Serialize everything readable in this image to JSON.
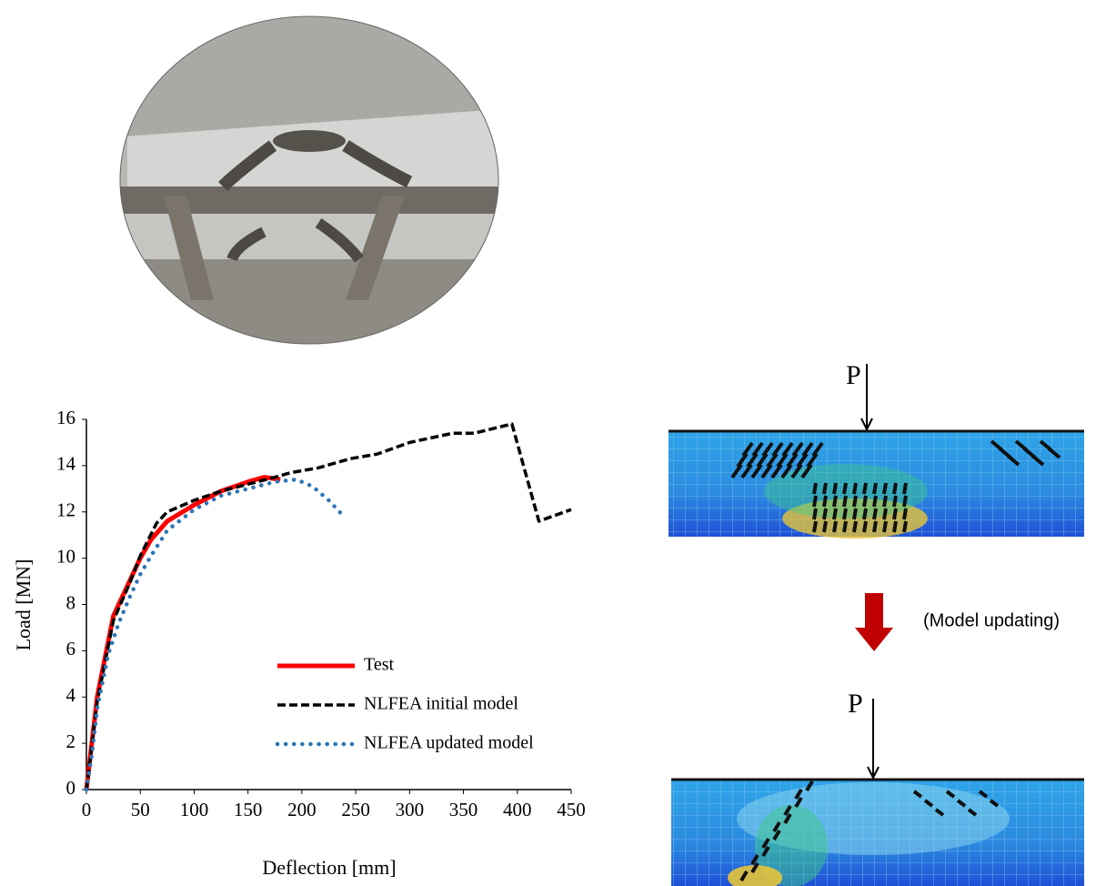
{
  "chart_data": {
    "type": "line",
    "xlabel": "Deflection [mm]",
    "ylabel": "Load [MN]",
    "xlim": [
      0,
      450
    ],
    "xticks": [
      0,
      50,
      100,
      150,
      200,
      250,
      300,
      350,
      400,
      450
    ],
    "ylim": [
      0,
      16
    ],
    "yticks": [
      0,
      2,
      4,
      6,
      8,
      10,
      12,
      14,
      16
    ],
    "grid": false,
    "legend": "lower right",
    "series": [
      {
        "name": "Test",
        "color": "#ff0000",
        "style": "solid",
        "x": [
          0,
          3,
          10,
          25,
          40,
          50,
          60,
          75,
          100,
          125,
          150,
          165,
          180
        ],
        "values": [
          0,
          1.2,
          4,
          7.5,
          9,
          10,
          10.8,
          11.6,
          12.3,
          12.9,
          13.3,
          13.5,
          13.4
        ]
      },
      {
        "name": "NLFEA initial model",
        "color": "#000000",
        "style": "dashed",
        "x": [
          0,
          3,
          10,
          25,
          40,
          50,
          65,
          75,
          100,
          125,
          150,
          175,
          190,
          215,
          245,
          270,
          300,
          340,
          360,
          395,
          420,
          450
        ],
        "values": [
          0,
          1.1,
          3.8,
          7.3,
          8.9,
          10.1,
          11.5,
          12,
          12.5,
          12.9,
          13.2,
          13.5,
          13.7,
          13.9,
          14.3,
          14.5,
          15.0,
          15.4,
          15.4,
          15.8,
          11.6,
          12.1
        ]
      },
      {
        "name": "NLFEA updated model",
        "color": "#2e75b6",
        "style": "dotted",
        "x": [
          0,
          5,
          10,
          20,
          30,
          40,
          50,
          60,
          75,
          100,
          125,
          150,
          175,
          195,
          210,
          225,
          237
        ],
        "values": [
          0,
          1.5,
          3.5,
          5.8,
          7.2,
          8.3,
          9.3,
          10.1,
          11.2,
          12.1,
          12.7,
          13.0,
          13.3,
          13.4,
          13.1,
          12.5,
          11.9
        ]
      }
    ]
  },
  "figure": {
    "load_labels": [
      "P",
      "P"
    ],
    "arrow_label": "(Model updating)"
  }
}
